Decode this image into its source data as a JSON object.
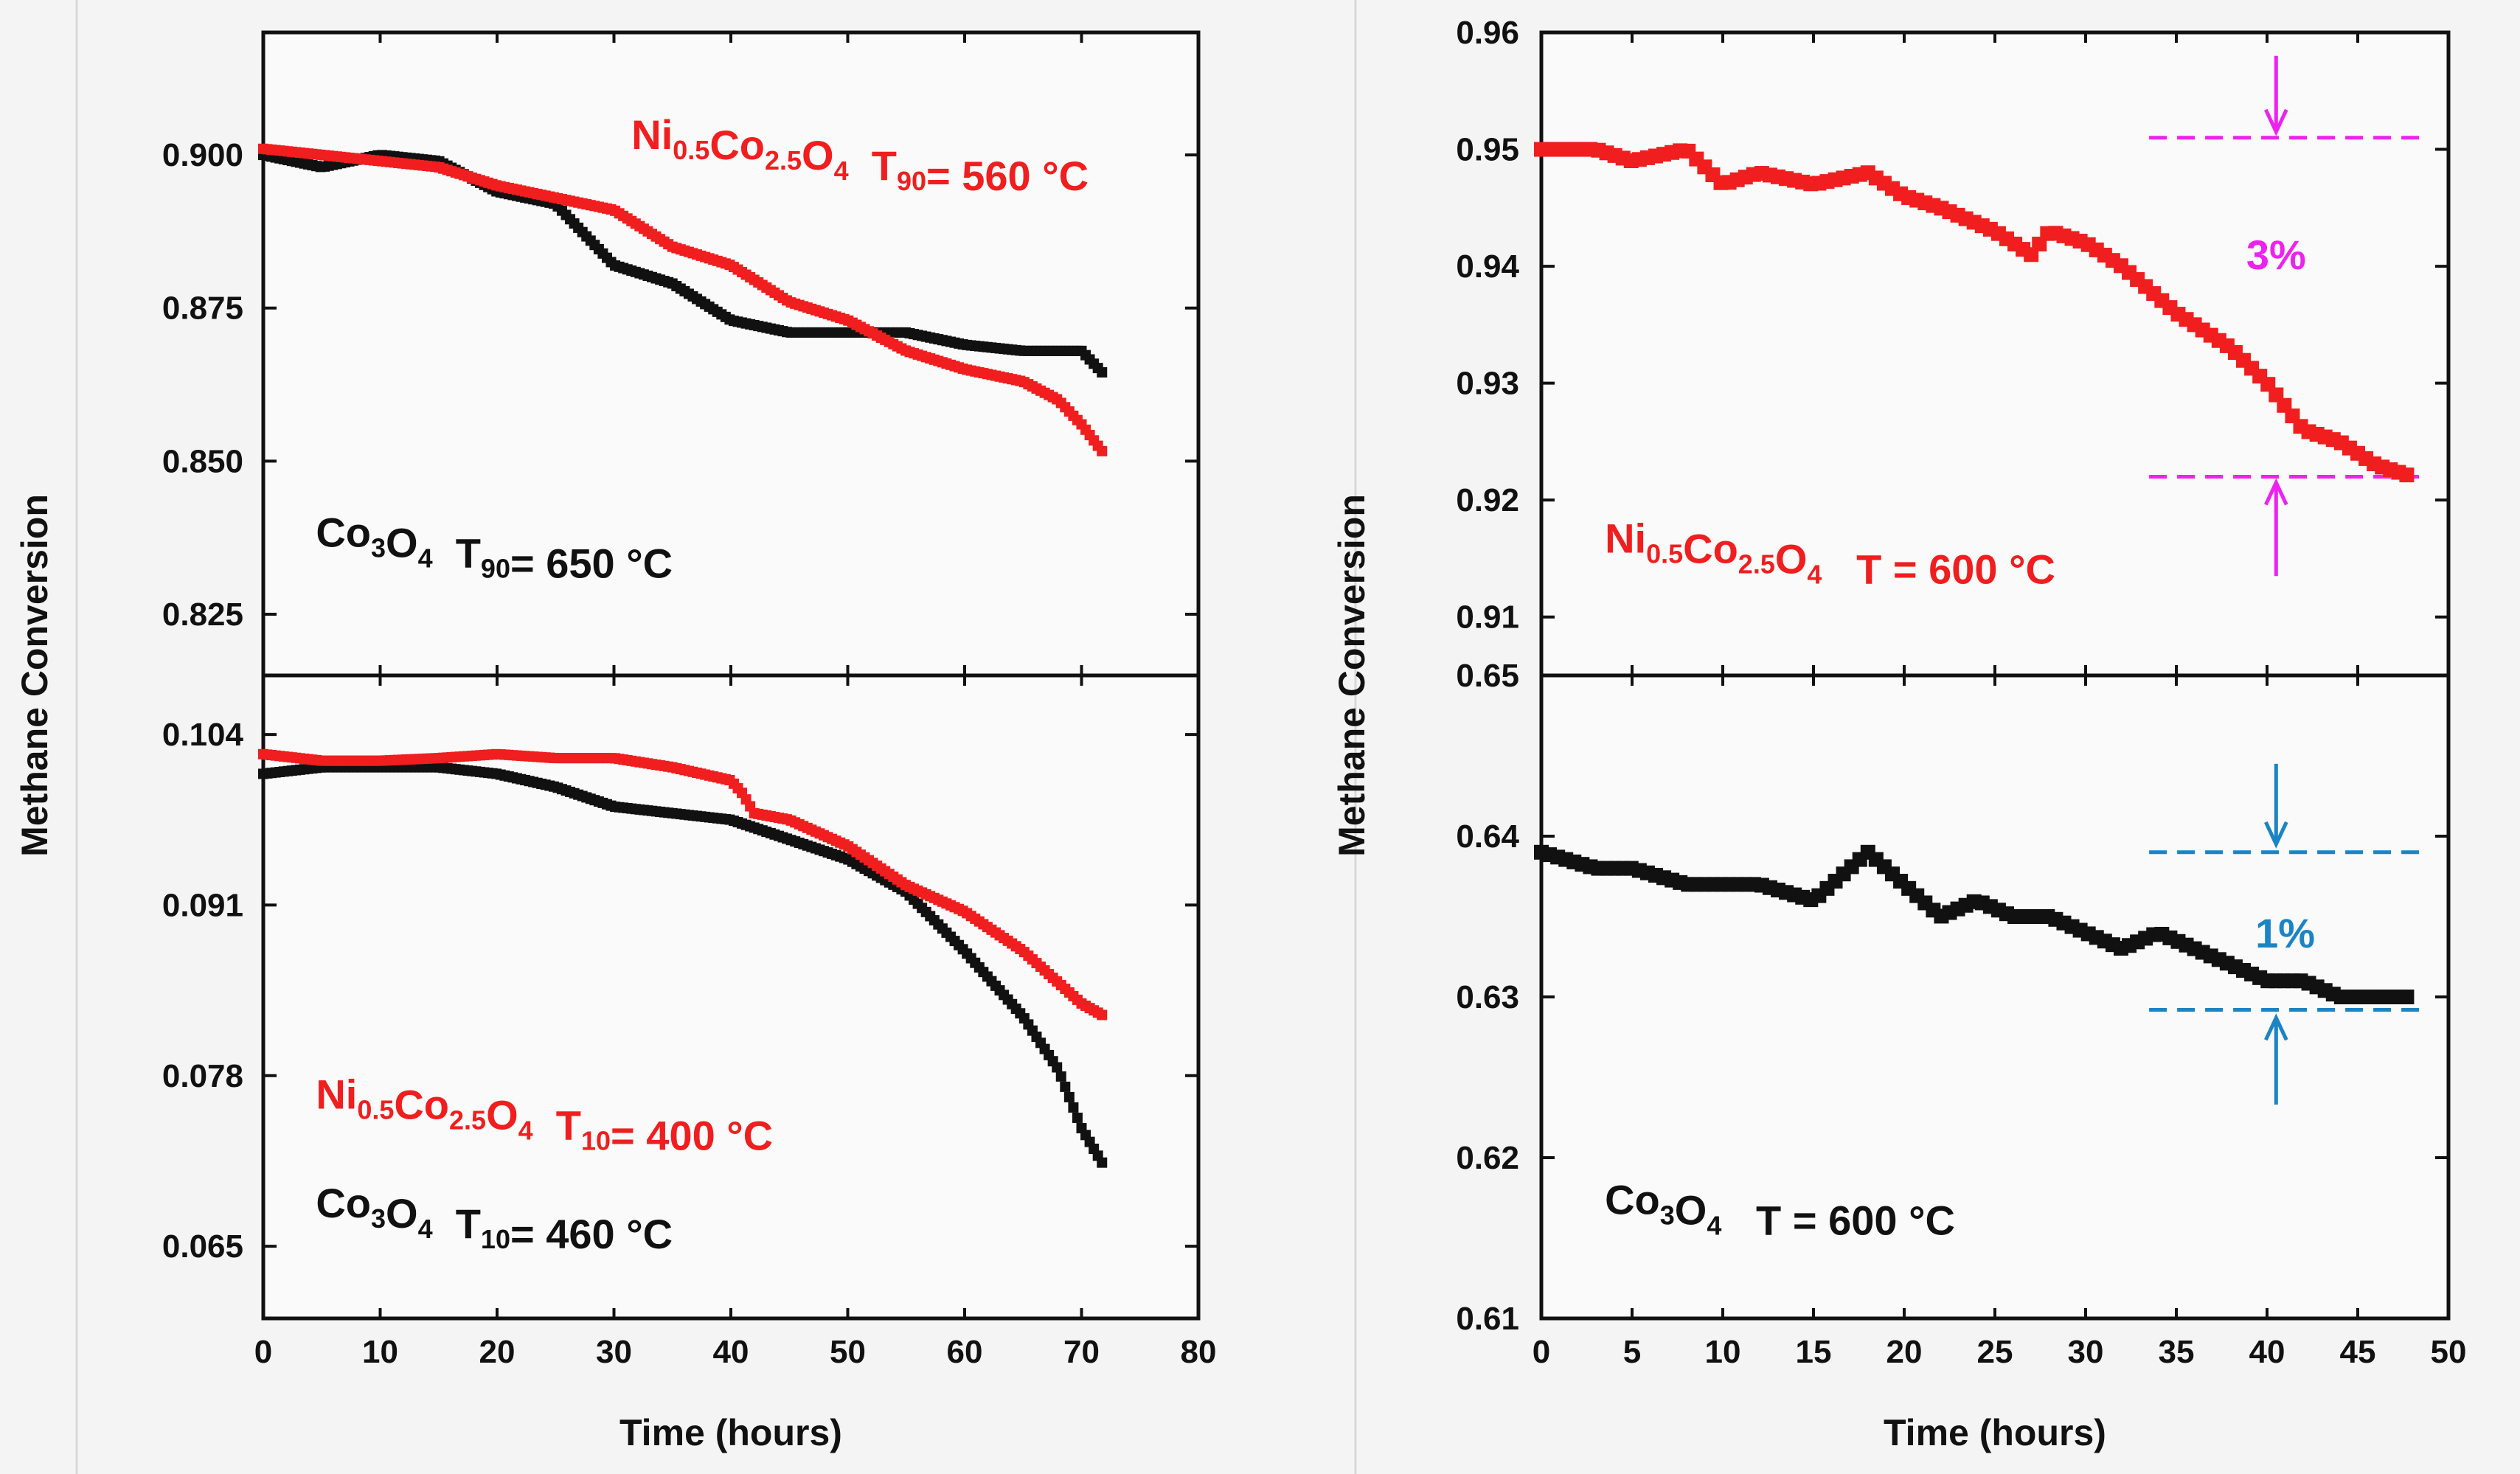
{
  "colors": {
    "red": "#f01e1e",
    "black": "#111111",
    "magenta": "#ee22ee",
    "blue": "#1a84c4",
    "panel_bg": "#fafafa"
  },
  "chart_data": [
    {
      "id": "left-top",
      "type": "scatter",
      "ylabel": "Methane Conversion",
      "xlabel": "",
      "xlim": [
        0,
        80
      ],
      "ylim": [
        0.815,
        0.92
      ],
      "xticks": [
        0,
        10,
        20,
        30,
        40,
        50,
        60,
        70,
        80
      ],
      "yticks": [
        0.825,
        0.85,
        0.875,
        0.9
      ],
      "ytick_labels": [
        "0.825",
        "0.850",
        "0.875",
        "0.900"
      ],
      "series": [
        {
          "name": "Co3O4",
          "color": "#111111",
          "x": [
            0,
            5,
            10,
            15,
            20,
            25,
            30,
            35,
            40,
            45,
            50,
            55,
            60,
            65,
            70,
            72
          ],
          "y": [
            0.9,
            0.898,
            0.9,
            0.899,
            0.894,
            0.892,
            0.882,
            0.879,
            0.873,
            0.871,
            0.871,
            0.871,
            0.869,
            0.868,
            0.868,
            0.864
          ]
        },
        {
          "name": "Ni0.5Co2.5O4",
          "color": "#f01e1e",
          "x": [
            0,
            5,
            10,
            15,
            20,
            25,
            30,
            35,
            40,
            45,
            50,
            55,
            60,
            65,
            68,
            70,
            72
          ],
          "y": [
            0.901,
            0.9,
            0.899,
            0.898,
            0.895,
            0.893,
            0.891,
            0.885,
            0.882,
            0.876,
            0.873,
            0.868,
            0.865,
            0.863,
            0.86,
            0.856,
            0.851
          ]
        }
      ],
      "annotations": [
        {
          "parts": [
            {
              "t": "Ni"
            },
            {
              "t": "0.5",
              "sub": true
            },
            {
              "t": "Co"
            },
            {
              "t": "2.5",
              "sub": true
            },
            {
              "t": "O"
            },
            {
              "t": "4",
              "sub": true
            },
            {
              "t": "  T"
            },
            {
              "t": "90",
              "sub": true
            },
            {
              "t": "= 560 °C"
            }
          ],
          "color": "#f01e1e",
          "x": 31.5,
          "y": 0.901
        },
        {
          "parts": [
            {
              "t": "Co"
            },
            {
              "t": "3",
              "sub": true
            },
            {
              "t": "O"
            },
            {
              "t": "4",
              "sub": true
            },
            {
              "t": "  T"
            },
            {
              "t": "90",
              "sub": true
            },
            {
              "t": "= 650 °C"
            }
          ],
          "color": "#111111",
          "x": 4.5,
          "y": 0.836
        }
      ]
    },
    {
      "id": "left-bottom",
      "type": "scatter",
      "ylabel": "",
      "xlabel": "Time (hours)",
      "xlim": [
        0,
        80
      ],
      "ylim": [
        0.0595,
        0.1085
      ],
      "xticks": [
        0,
        10,
        20,
        30,
        40,
        50,
        60,
        70,
        80
      ],
      "xtick_labels": [
        "0",
        "10",
        "20",
        "30",
        "40",
        "50",
        "60",
        "70",
        "80"
      ],
      "yticks": [
        0.065,
        0.078,
        0.091,
        0.104
      ],
      "ytick_labels": [
        "0.065",
        "0.078",
        "0.091",
        "0.104"
      ],
      "series": [
        {
          "name": "Co3O4",
          "color": "#111111",
          "x": [
            0,
            5,
            10,
            15,
            20,
            25,
            30,
            35,
            40,
            45,
            50,
            55,
            60,
            65,
            68,
            70,
            72
          ],
          "y": [
            0.101,
            0.1015,
            0.1015,
            0.1015,
            0.101,
            0.1,
            0.0985,
            0.098,
            0.0975,
            0.096,
            0.0945,
            0.092,
            0.0875,
            0.0825,
            0.0785,
            0.074,
            0.071
          ]
        },
        {
          "name": "Ni0.5Co2.5O4",
          "color": "#f01e1e",
          "x": [
            0,
            5,
            10,
            15,
            20,
            25,
            30,
            35,
            40,
            41,
            42,
            45,
            50,
            55,
            60,
            65,
            70,
            72
          ],
          "y": [
            0.1025,
            0.102,
            0.102,
            0.1022,
            0.1025,
            0.1022,
            0.1022,
            0.1015,
            0.1005,
            0.0995,
            0.098,
            0.0975,
            0.0955,
            0.0925,
            0.0905,
            0.0875,
            0.0835,
            0.0825
          ]
        }
      ],
      "annotations": [
        {
          "parts": [
            {
              "t": "Ni"
            },
            {
              "t": "0.5",
              "sub": true
            },
            {
              "t": "Co"
            },
            {
              "t": "2.5",
              "sub": true
            },
            {
              "t": "O"
            },
            {
              "t": "4",
              "sub": true
            },
            {
              "t": "  T"
            },
            {
              "t": "10",
              "sub": true
            },
            {
              "t": "= 400 °C"
            }
          ],
          "color": "#f01e1e",
          "x": 4.5,
          "y": 0.0755
        },
        {
          "parts": [
            {
              "t": "Co"
            },
            {
              "t": "3",
              "sub": true
            },
            {
              "t": "O"
            },
            {
              "t": "4",
              "sub": true
            },
            {
              "t": "  T"
            },
            {
              "t": "10",
              "sub": true
            },
            {
              "t": "= 460 °C"
            }
          ],
          "color": "#111111",
          "x": 4.5,
          "y": 0.0672
        }
      ]
    },
    {
      "id": "right-top",
      "type": "scatter",
      "ylabel": "Methane Conversion",
      "xlabel": "",
      "xlim": [
        0,
        50
      ],
      "ylim": [
        0.905,
        0.96
      ],
      "xticks": [
        0,
        5,
        10,
        15,
        20,
        25,
        30,
        35,
        40,
        45,
        50
      ],
      "yticks": [
        0.91,
        0.92,
        0.93,
        0.94,
        0.95,
        0.96
      ],
      "ytick_labels": [
        "0.91",
        "0.92",
        "0.93",
        "0.94",
        "0.95",
        "0.96"
      ],
      "series": [
        {
          "name": "Ni0.5Co2.5O4",
          "color": "#f01e1e",
          "x": [
            0,
            3,
            5,
            8,
            10,
            12,
            15,
            18,
            20,
            22,
            25,
            27,
            28,
            30,
            32,
            35,
            38,
            40,
            42,
            44,
            46,
            48
          ],
          "y": [
            0.95,
            0.95,
            0.949,
            0.95,
            0.947,
            0.948,
            0.947,
            0.948,
            0.946,
            0.945,
            0.943,
            0.941,
            0.943,
            0.942,
            0.94,
            0.936,
            0.933,
            0.93,
            0.926,
            0.925,
            0.923,
            0.922
          ]
        }
      ],
      "guides": [
        {
          "x0": 33.5,
          "x1": 48.5,
          "y": 0.951
        },
        {
          "x0": 33.5,
          "x1": 48.5,
          "y": 0.922
        }
      ],
      "guide_color": "#ee22ee",
      "arrows": [
        {
          "x": 40.5,
          "from": 0.958,
          "to": 0.9515
        },
        {
          "x": 40.5,
          "from": 0.9135,
          "to": 0.9215
        }
      ],
      "label": {
        "text": "3%",
        "x": 40.5,
        "y": 0.941,
        "color": "#ee22ee"
      },
      "annotations": [
        {
          "parts": [
            {
              "t": "Ni"
            },
            {
              "t": "0.5",
              "sub": true
            },
            {
              "t": "Co"
            },
            {
              "t": "2.5",
              "sub": true
            },
            {
              "t": "O"
            },
            {
              "t": "4",
              "sub": true
            },
            {
              "t": "   T = 600 °C"
            }
          ],
          "color": "#f01e1e",
          "x": 3.5,
          "y": 0.9155
        }
      ]
    },
    {
      "id": "right-bottom",
      "type": "scatter",
      "ylabel": "",
      "xlabel": "Time (hours)",
      "xlim": [
        0,
        50
      ],
      "ylim": [
        0.61,
        0.65
      ],
      "xticks": [
        0,
        5,
        10,
        15,
        20,
        25,
        30,
        35,
        40,
        45,
        50
      ],
      "xtick_labels": [
        "0",
        "5",
        "10",
        "15",
        "20",
        "25",
        "30",
        "35",
        "40",
        "45",
        "50"
      ],
      "yticks": [
        0.61,
        0.62,
        0.63,
        0.64,
        0.65
      ],
      "ytick_labels": [
        "0.61",
        "0.62",
        "0.63",
        "0.64",
        "0.65"
      ],
      "series": [
        {
          "name": "Co3O4",
          "color": "#111111",
          "x": [
            0,
            3,
            5,
            8,
            10,
            12,
            15,
            17,
            18,
            20,
            22,
            24,
            26,
            28,
            30,
            32,
            34,
            36,
            38,
            40,
            42,
            44,
            46,
            48
          ],
          "y": [
            0.639,
            0.638,
            0.638,
            0.637,
            0.637,
            0.637,
            0.636,
            0.638,
            0.639,
            0.637,
            0.635,
            0.636,
            0.635,
            0.635,
            0.634,
            0.633,
            0.634,
            0.633,
            0.632,
            0.631,
            0.631,
            0.63,
            0.63,
            0.63
          ]
        }
      ],
      "guides": [
        {
          "x0": 33.5,
          "x1": 48.5,
          "y": 0.639
        },
        {
          "x0": 33.5,
          "x1": 48.5,
          "y": 0.6292
        }
      ],
      "guide_color": "#1a84c4",
      "arrows": [
        {
          "x": 40.5,
          "from": 0.6445,
          "to": 0.6395
        },
        {
          "x": 40.5,
          "from": 0.6233,
          "to": 0.6287
        }
      ],
      "label": {
        "text": "1%",
        "x": 41,
        "y": 0.634,
        "color": "#1a84c4"
      },
      "annotations": [
        {
          "parts": [
            {
              "t": "Co"
            },
            {
              "t": "3",
              "sub": true
            },
            {
              "t": "O"
            },
            {
              "t": "4",
              "sub": true
            },
            {
              "t": "   T = 600 °C"
            }
          ],
          "color": "#111111",
          "x": 3.5,
          "y": 0.6165
        }
      ]
    }
  ]
}
